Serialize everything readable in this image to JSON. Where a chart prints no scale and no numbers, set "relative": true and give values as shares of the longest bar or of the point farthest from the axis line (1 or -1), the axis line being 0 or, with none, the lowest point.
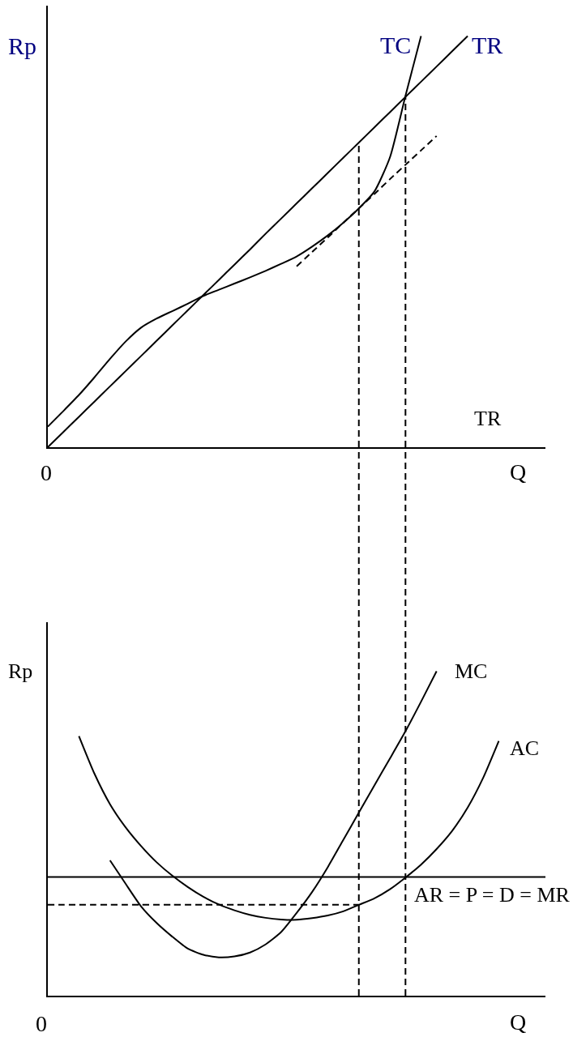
{
  "chart_data": [
    {
      "type": "line",
      "relative": true,
      "ylabel": "Rp",
      "xlabel": "Q",
      "categories": [
        null,
        null,
        null,
        null,
        null,
        null,
        null,
        null,
        null,
        null,
        null,
        null,
        null,
        null,
        null,
        null,
        null,
        null,
        null,
        null,
        null,
        null,
        null,
        null,
        null,
        null,
        null,
        null,
        null,
        null,
        null,
        null,
        null
      ],
      "series": [
        {
          "name": "TC",
          "color": "#000000",
          "values": [
            0.05,
            0.088,
            0.127,
            0.17,
            0.215,
            0.257,
            0.291,
            0.313,
            0.331,
            0.349,
            0.368,
            0.383,
            0.398,
            0.413,
            0.429,
            0.446,
            0.464,
            0.488,
            0.515,
            0.546,
            0.581,
            0.622,
            0.705,
            0.855,
            1,
            null,
            null,
            null,
            null,
            null,
            null,
            null,
            null
          ]
        },
        {
          "name": "TR",
          "color": "#000000",
          "values": [
            0,
            0.037,
            0.074,
            0.111,
            0.148,
            0.185,
            0.222,
            0.259,
            0.296,
            0.333,
            0.37,
            0.407,
            0.444,
            0.481,
            0.519,
            0.556,
            0.593,
            0.63,
            0.667,
            0.704,
            0.741,
            0.778,
            0.815,
            0.852,
            0.889,
            0.926,
            0.963,
            1,
            null,
            null,
            null,
            null,
            null
          ]
        },
        {
          "color": "#000000",
          "line_style": "dashed",
          "values": [
            null,
            null,
            null,
            null,
            null,
            null,
            null,
            null,
            null,
            null,
            null,
            null,
            null,
            null,
            null,
            null,
            0.44,
            0.475,
            0.51,
            0.546,
            0.581,
            0.616,
            0.652,
            0.687,
            0.722,
            0.757,
            null,
            null,
            null,
            null,
            null,
            null,
            null
          ]
        }
      ],
      "annotations": [
        "0",
        "TR"
      ]
    },
    {
      "type": "line",
      "relative": true,
      "ylabel": "Rp",
      "xlabel": "Q",
      "categories": [
        null,
        null,
        null,
        null,
        null,
        null,
        null,
        null,
        null,
        null,
        null,
        null,
        null,
        null,
        null,
        null,
        null,
        null,
        null,
        null,
        null,
        null,
        null,
        null,
        null,
        null,
        null,
        null,
        null,
        null,
        null,
        null,
        null
      ],
      "series": [
        {
          "name": "AC",
          "color": "#000000",
          "values": [
            null,
            null,
            0.8,
            0.684,
            0.59,
            0.519,
            0.461,
            0.411,
            0.37,
            0.335,
            0.305,
            0.281,
            0.263,
            0.249,
            0.24,
            0.235,
            0.234,
            0.239,
            0.247,
            0.26,
            0.28,
            0.3,
            0.328,
            0.364,
            0.404,
            0.452,
            0.508,
            0.58,
            0.672,
            0.785,
            null,
            null,
            null
          ]
        },
        {
          "name": "MC",
          "color": "#000000",
          "values": [
            null,
            null,
            null,
            null,
            0.417,
            0.345,
            0.275,
            0.224,
            0.182,
            0.145,
            0.126,
            0.118,
            0.121,
            0.133,
            0.158,
            0.196,
            0.255,
            0.32,
            0.396,
            0.48,
            0.564,
            0.648,
            0.731,
            0.815,
            0.906,
            1,
            null,
            null,
            null,
            null,
            null,
            null,
            null
          ]
        },
        {
          "name": "AR = P = D = MR",
          "color": "#000000",
          "values": [
            0.366,
            0.366,
            0.366,
            0.366,
            0.366,
            0.366,
            0.366,
            0.366,
            0.366,
            0.366,
            0.366,
            0.366,
            0.366,
            0.366,
            0.366,
            0.366,
            0.366,
            0.366,
            0.366,
            0.366,
            0.366,
            0.366,
            0.366,
            0.366,
            0.366,
            0.366,
            0.366,
            0.366,
            0.366,
            0.366,
            0.366,
            0.366,
            0.366
          ]
        },
        {
          "color": "#000000",
          "line_style": "dashed",
          "values": [
            0.28,
            0.28,
            0.28,
            0.28,
            0.28,
            0.28,
            0.28,
            0.28,
            0.28,
            0.28,
            0.28,
            0.28,
            0.28,
            0.28,
            0.28,
            0.28,
            0.28,
            0.28,
            0.28,
            0.28,
            0.28,
            null,
            null,
            null,
            null,
            null,
            null,
            null,
            null,
            null,
            null,
            null,
            null
          ]
        }
      ],
      "annotations": [
        "0"
      ]
    }
  ]
}
